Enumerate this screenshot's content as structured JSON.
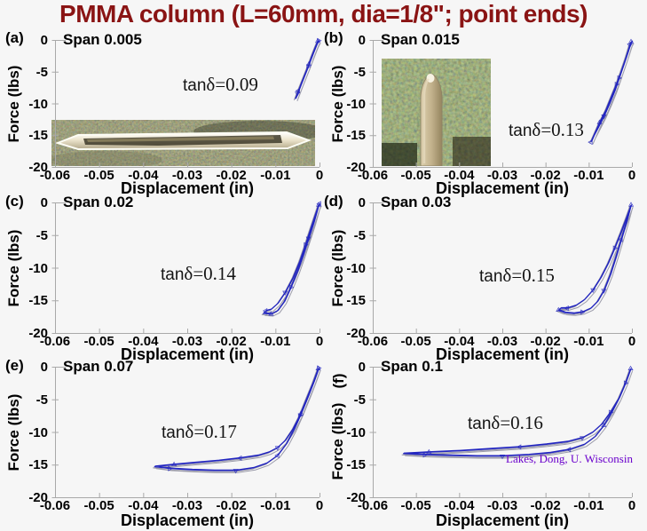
{
  "title": {
    "text": "PMMA column (L=60mm, dia=1/8\"; point ends)"
  },
  "credit": {
    "text": "Lakes, Dong, U. Wisconsin"
  },
  "colors": {
    "title": "#8a1414",
    "curve": "#2326c0",
    "curve_secondary": "#9b9baa",
    "axis": "#a9a9a9",
    "credit": "#6a00cc",
    "text": "#000000",
    "background": "#f6f6f6"
  },
  "axes": {
    "x_label": "Displacement (in)",
    "y_label": "Force (lbs)",
    "x_ticks": [
      "-0.06",
      "-0.05",
      "-0.04",
      "-0.03",
      "-0.02",
      "-0.01",
      "0"
    ],
    "y_ticks": [
      "0",
      "-5",
      "-10",
      "-15",
      "-20"
    ],
    "x_range": [
      -0.06,
      0
    ],
    "y_range": [
      -20,
      0
    ],
    "grid": false
  },
  "insets": [
    {
      "panel": "(a)",
      "name": "specimen-photo-horizontal-rod",
      "desc": "PMMA rod with pointed ends lying horizontally"
    },
    {
      "panel": "(b)",
      "name": "specimen-photo-rod-tip",
      "desc": "close-up of pointed rod tip, vertical"
    }
  ],
  "chart_data": [
    {
      "panel": "(a)",
      "type": "line",
      "span_label": "Span 0.005",
      "span": 0.005,
      "tan_prefix": "tan",
      "tan_rest": "δ=0.09",
      "tan_delta": 0.09,
      "xlabel": "Displacement (in)",
      "ylabel": "Force (lbs)",
      "upper": [
        [
          -0.0004,
          -0.2
        ],
        [
          -0.001,
          -1.2
        ],
        [
          -0.0018,
          -2.6
        ],
        [
          -0.0026,
          -4.2
        ],
        [
          -0.0034,
          -5.6
        ],
        [
          -0.0042,
          -7.0
        ],
        [
          -0.005,
          -8.4
        ],
        [
          -0.0055,
          -9.3
        ]
      ],
      "lower": [
        [
          -0.0055,
          -9.3
        ],
        [
          -0.0048,
          -8.0
        ],
        [
          -0.004,
          -6.6
        ],
        [
          -0.0032,
          -5.2
        ],
        [
          -0.0024,
          -3.8
        ],
        [
          -0.0015,
          -2.2
        ],
        [
          -0.0007,
          -0.8
        ],
        [
          -0.0002,
          -0.1
        ]
      ]
    },
    {
      "panel": "(b)",
      "type": "line",
      "span_label": "Span 0.015",
      "span": 0.015,
      "tan_prefix": "tan",
      "tan_rest": "δ=0.13",
      "tan_delta": 0.13,
      "xlabel": "Displacement (in)",
      "ylabel": "Force (lbs)",
      "upper": [
        [
          -0.0002,
          -0.3
        ],
        [
          -0.001,
          -2
        ],
        [
          -0.002,
          -4
        ],
        [
          -0.003,
          -6
        ],
        [
          -0.004,
          -8
        ],
        [
          -0.0052,
          -10
        ],
        [
          -0.0065,
          -12
        ],
        [
          -0.008,
          -14
        ],
        [
          -0.009,
          -15.3
        ],
        [
          -0.0095,
          -16.1
        ]
      ],
      "lower": [
        [
          -0.0095,
          -16.1
        ],
        [
          -0.0088,
          -15
        ],
        [
          -0.0075,
          -13
        ],
        [
          -0.006,
          -11
        ],
        [
          -0.0048,
          -9
        ],
        [
          -0.0036,
          -7
        ],
        [
          -0.0025,
          -5
        ],
        [
          -0.0014,
          -2.8
        ],
        [
          -0.0005,
          -0.8
        ],
        [
          0,
          -0.2
        ]
      ]
    },
    {
      "panel": "(c)",
      "type": "line",
      "span_label": "Span 0.02",
      "span": 0.02,
      "tan_prefix": "tan",
      "tan_rest": "δ=0.14",
      "tan_delta": 0.14,
      "xlabel": "Displacement (in)",
      "ylabel": "Force (lbs)",
      "upper": [
        [
          -0.0002,
          -0.4
        ],
        [
          -0.001,
          -2
        ],
        [
          -0.002,
          -4
        ],
        [
          -0.0032,
          -6.5
        ],
        [
          -0.0045,
          -9
        ],
        [
          -0.006,
          -11.5
        ],
        [
          -0.0078,
          -13.8
        ],
        [
          -0.0095,
          -15.5
        ],
        [
          -0.011,
          -16.4
        ],
        [
          -0.0122,
          -16.6
        ],
        [
          -0.0127,
          -17.0
        ]
      ],
      "lower": [
        [
          -0.0127,
          -17.0
        ],
        [
          -0.011,
          -17.1
        ],
        [
          -0.0095,
          -16.6
        ],
        [
          -0.008,
          -15.2
        ],
        [
          -0.0065,
          -13
        ],
        [
          -0.005,
          -10.5
        ],
        [
          -0.0037,
          -8
        ],
        [
          -0.0025,
          -5.5
        ],
        [
          -0.0013,
          -3
        ],
        [
          -0.0004,
          -0.8
        ],
        [
          0,
          -0.2
        ]
      ]
    },
    {
      "panel": "(d)",
      "type": "line",
      "span_label": "Span 0.03",
      "span": 0.03,
      "tan_prefix": "tan",
      "tan_rest": "δ=0.15",
      "tan_delta": 0.15,
      "xlabel": "Displacement (in)",
      "ylabel": "Force (lbs)",
      "upper": [
        [
          -0.0002,
          -0.4
        ],
        [
          -0.0012,
          -2.2
        ],
        [
          -0.0025,
          -4.5
        ],
        [
          -0.004,
          -7
        ],
        [
          -0.0055,
          -9.3
        ],
        [
          -0.0072,
          -11.5
        ],
        [
          -0.009,
          -13.4
        ],
        [
          -0.011,
          -14.9
        ],
        [
          -0.013,
          -15.8
        ],
        [
          -0.015,
          -16.2
        ],
        [
          -0.0165,
          -16.2
        ],
        [
          -0.017,
          -16.5
        ]
      ],
      "lower": [
        [
          -0.017,
          -16.5
        ],
        [
          -0.0155,
          -16.9
        ],
        [
          -0.0135,
          -17.0
        ],
        [
          -0.0115,
          -16.8
        ],
        [
          -0.0095,
          -16.2
        ],
        [
          -0.008,
          -15.2
        ],
        [
          -0.0065,
          -13.5
        ],
        [
          -0.005,
          -11
        ],
        [
          -0.0037,
          -8.3
        ],
        [
          -0.0025,
          -5.7
        ],
        [
          -0.0013,
          -3
        ],
        [
          -0.0003,
          -0.5
        ]
      ]
    },
    {
      "panel": "(e)",
      "type": "line",
      "span_label": "Span 0.07",
      "span": 0.07,
      "tan_prefix": "tan",
      "tan_rest": "δ=0.17",
      "tan_delta": 0.17,
      "xlabel": "Displacement (in)",
      "ylabel": "Force (lbs)",
      "upper": [
        [
          -0.0003,
          -0.3
        ],
        [
          -0.0015,
          -2.5
        ],
        [
          -0.003,
          -5
        ],
        [
          -0.0045,
          -7.5
        ],
        [
          -0.006,
          -9.5
        ],
        [
          -0.0078,
          -11.3
        ],
        [
          -0.0095,
          -12.4
        ],
        [
          -0.0115,
          -13.1
        ],
        [
          -0.014,
          -13.6
        ],
        [
          -0.018,
          -14.0
        ],
        [
          -0.023,
          -14.4
        ],
        [
          -0.028,
          -14.7
        ],
        [
          -0.033,
          -15.0
        ],
        [
          -0.0375,
          -15.3
        ]
      ],
      "lower": [
        [
          -0.0375,
          -15.3
        ],
        [
          -0.034,
          -15.6
        ],
        [
          -0.029,
          -15.8
        ],
        [
          -0.024,
          -15.9
        ],
        [
          -0.019,
          -15.9
        ],
        [
          -0.015,
          -15.5
        ],
        [
          -0.012,
          -14.8
        ],
        [
          -0.0095,
          -13.6
        ],
        [
          -0.0075,
          -11.8
        ],
        [
          -0.0058,
          -9.6
        ],
        [
          -0.0042,
          -7.2
        ],
        [
          -0.0027,
          -4.7
        ],
        [
          -0.0013,
          -2.3
        ],
        [
          -0.0002,
          -0.2
        ]
      ]
    },
    {
      "panel": "(f)",
      "type": "line",
      "span_label": "Span 0.1",
      "span": 0.1,
      "tan_prefix": "tan",
      "tan_rest": "δ=0.16",
      "tan_delta": 0.16,
      "xlabel": "Displacement (in)",
      "ylabel": "Force (lbs)",
      "upper": [
        [
          -0.0003,
          -0.3
        ],
        [
          -0.0015,
          -2.5
        ],
        [
          -0.003,
          -4.8
        ],
        [
          -0.005,
          -7
        ],
        [
          -0.007,
          -8.8
        ],
        [
          -0.009,
          -10
        ],
        [
          -0.0115,
          -10.9
        ],
        [
          -0.015,
          -11.5
        ],
        [
          -0.02,
          -11.9
        ],
        [
          -0.026,
          -12.3
        ],
        [
          -0.033,
          -12.6
        ],
        [
          -0.04,
          -12.9
        ],
        [
          -0.047,
          -13.1
        ],
        [
          -0.053,
          -13.3
        ]
      ],
      "lower": [
        [
          -0.053,
          -13.3
        ],
        [
          -0.048,
          -13.5
        ],
        [
          -0.042,
          -13.6
        ],
        [
          -0.036,
          -13.7
        ],
        [
          -0.03,
          -13.7
        ],
        [
          -0.024,
          -13.5
        ],
        [
          -0.019,
          -13.2
        ],
        [
          -0.0145,
          -12.7
        ],
        [
          -0.011,
          -11.9
        ],
        [
          -0.0085,
          -10.7
        ],
        [
          -0.0065,
          -9
        ],
        [
          -0.0047,
          -7
        ],
        [
          -0.003,
          -4.8
        ],
        [
          -0.0015,
          -2.5
        ],
        [
          -0.0003,
          -0.3
        ]
      ]
    }
  ]
}
